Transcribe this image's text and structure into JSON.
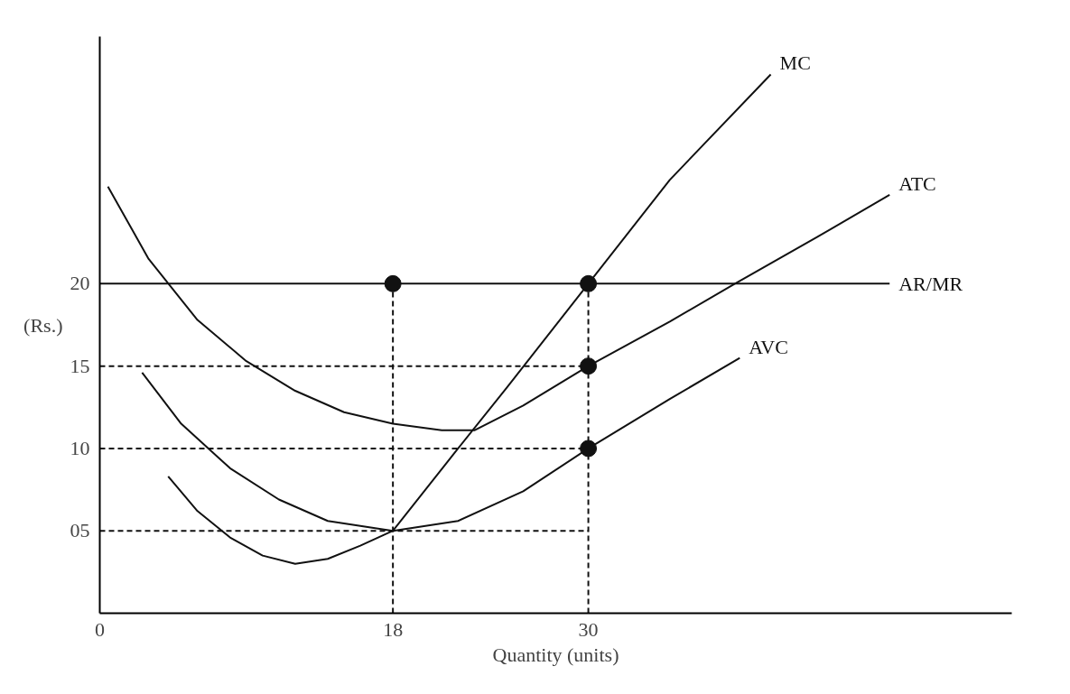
{
  "chart_data": {
    "type": "line",
    "xlabel": "Quantity (units)",
    "ylabel": "(Rs.)",
    "xlim": [
      0,
      56
    ],
    "ylim": [
      0,
      35
    ],
    "xticks": [
      0,
      18,
      30
    ],
    "yticks": [
      {
        "value": 5,
        "label": "05"
      },
      10,
      15,
      20
    ],
    "grid": false,
    "series": [
      {
        "name": "MC",
        "color": "#111111",
        "line_style": "solid",
        "x": [
          4.2,
          6,
          8,
          10,
          12,
          14,
          16,
          18,
          22,
          25,
          30,
          35,
          41.2
        ],
        "values": [
          8.3,
          6.2,
          4.6,
          3.5,
          3.0,
          3.3,
          4.1,
          5,
          10,
          13.7,
          20,
          26.3,
          32.7
        ]
      },
      {
        "name": "ATC",
        "color": "#111111",
        "line_style": "solid",
        "x": [
          0.5,
          3,
          6,
          9,
          12,
          15,
          18,
          21,
          23,
          26,
          30,
          35,
          39,
          44,
          48.5
        ],
        "values": [
          25.9,
          21.5,
          17.8,
          15.3,
          13.5,
          12.2,
          11.5,
          11.1,
          11.1,
          12.6,
          15,
          17.7,
          20,
          22.8,
          25.4
        ]
      },
      {
        "name": "AVC",
        "color": "#111111",
        "line_style": "solid",
        "x": [
          2.6,
          5,
          8,
          11,
          14,
          18,
          22,
          26,
          30,
          35,
          39.3
        ],
        "values": [
          14.6,
          11.5,
          8.8,
          6.9,
          5.6,
          5,
          5.6,
          7.4,
          10,
          13,
          15.5
        ]
      },
      {
        "name": "AR/MR",
        "color": "#111111",
        "line_style": "solid",
        "x": [
          0,
          48.5
        ],
        "values": [
          20,
          20
        ]
      },
      {
        "color": "#111111",
        "line_style": "dashed",
        "x": [
          0,
          30
        ],
        "values": [
          15,
          15
        ]
      },
      {
        "color": "#111111",
        "line_style": "dashed",
        "x": [
          0,
          30
        ],
        "values": [
          10,
          10
        ]
      },
      {
        "color": "#111111",
        "line_style": "dashed",
        "x": [
          0,
          30
        ],
        "values": [
          5,
          5
        ]
      },
      {
        "color": "#111111",
        "line_style": "dashed",
        "x": [
          18,
          18
        ],
        "values": [
          0,
          20
        ]
      },
      {
        "color": "#111111",
        "line_style": "dashed",
        "x": [
          30,
          30
        ],
        "values": [
          0,
          20
        ]
      },
      {
        "type": "scatter",
        "marker": "circle",
        "color": "#111111",
        "x": [
          18,
          30,
          30,
          30
        ],
        "values": [
          20,
          20,
          15,
          10
        ]
      }
    ]
  }
}
